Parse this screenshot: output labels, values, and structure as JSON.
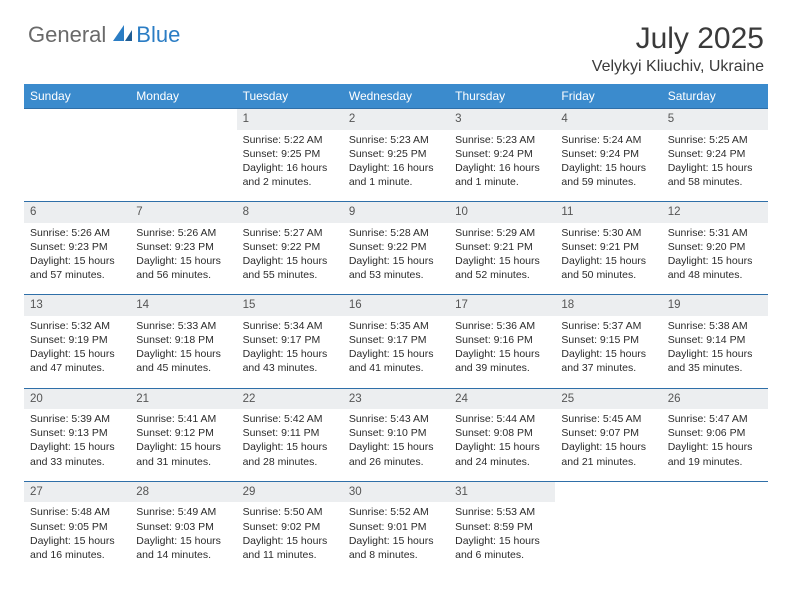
{
  "brand": {
    "name1": "General",
    "name2": "Blue"
  },
  "title": "July 2025",
  "location": "Velykyi Kliuchiv, Ukraine",
  "colors": {
    "header_bg": "#3b8bcd",
    "header_text": "#ffffff",
    "daynum_bg": "#eceef0",
    "row_border": "#2f6fa8",
    "body_text": "#2b2b2b",
    "brand_gray": "#6a6a6a",
    "brand_blue": "#2b7dc4"
  },
  "typography": {
    "title_fontsize": 30,
    "location_fontsize": 16,
    "weekday_fontsize": 12,
    "daynum_fontsize": 11.5,
    "cell_fontsize": 10.5
  },
  "weekdays": [
    "Sunday",
    "Monday",
    "Tuesday",
    "Wednesday",
    "Thursday",
    "Friday",
    "Saturday"
  ],
  "weeks": [
    [
      null,
      null,
      {
        "n": "1",
        "sunrise": "Sunrise: 5:22 AM",
        "sunset": "Sunset: 9:25 PM",
        "day1": "Daylight: 16 hours",
        "day2": "and 2 minutes."
      },
      {
        "n": "2",
        "sunrise": "Sunrise: 5:23 AM",
        "sunset": "Sunset: 9:25 PM",
        "day1": "Daylight: 16 hours",
        "day2": "and 1 minute."
      },
      {
        "n": "3",
        "sunrise": "Sunrise: 5:23 AM",
        "sunset": "Sunset: 9:24 PM",
        "day1": "Daylight: 16 hours",
        "day2": "and 1 minute."
      },
      {
        "n": "4",
        "sunrise": "Sunrise: 5:24 AM",
        "sunset": "Sunset: 9:24 PM",
        "day1": "Daylight: 15 hours",
        "day2": "and 59 minutes."
      },
      {
        "n": "5",
        "sunrise": "Sunrise: 5:25 AM",
        "sunset": "Sunset: 9:24 PM",
        "day1": "Daylight: 15 hours",
        "day2": "and 58 minutes."
      }
    ],
    [
      {
        "n": "6",
        "sunrise": "Sunrise: 5:26 AM",
        "sunset": "Sunset: 9:23 PM",
        "day1": "Daylight: 15 hours",
        "day2": "and 57 minutes."
      },
      {
        "n": "7",
        "sunrise": "Sunrise: 5:26 AM",
        "sunset": "Sunset: 9:23 PM",
        "day1": "Daylight: 15 hours",
        "day2": "and 56 minutes."
      },
      {
        "n": "8",
        "sunrise": "Sunrise: 5:27 AM",
        "sunset": "Sunset: 9:22 PM",
        "day1": "Daylight: 15 hours",
        "day2": "and 55 minutes."
      },
      {
        "n": "9",
        "sunrise": "Sunrise: 5:28 AM",
        "sunset": "Sunset: 9:22 PM",
        "day1": "Daylight: 15 hours",
        "day2": "and 53 minutes."
      },
      {
        "n": "10",
        "sunrise": "Sunrise: 5:29 AM",
        "sunset": "Sunset: 9:21 PM",
        "day1": "Daylight: 15 hours",
        "day2": "and 52 minutes."
      },
      {
        "n": "11",
        "sunrise": "Sunrise: 5:30 AM",
        "sunset": "Sunset: 9:21 PM",
        "day1": "Daylight: 15 hours",
        "day2": "and 50 minutes."
      },
      {
        "n": "12",
        "sunrise": "Sunrise: 5:31 AM",
        "sunset": "Sunset: 9:20 PM",
        "day1": "Daylight: 15 hours",
        "day2": "and 48 minutes."
      }
    ],
    [
      {
        "n": "13",
        "sunrise": "Sunrise: 5:32 AM",
        "sunset": "Sunset: 9:19 PM",
        "day1": "Daylight: 15 hours",
        "day2": "and 47 minutes."
      },
      {
        "n": "14",
        "sunrise": "Sunrise: 5:33 AM",
        "sunset": "Sunset: 9:18 PM",
        "day1": "Daylight: 15 hours",
        "day2": "and 45 minutes."
      },
      {
        "n": "15",
        "sunrise": "Sunrise: 5:34 AM",
        "sunset": "Sunset: 9:17 PM",
        "day1": "Daylight: 15 hours",
        "day2": "and 43 minutes."
      },
      {
        "n": "16",
        "sunrise": "Sunrise: 5:35 AM",
        "sunset": "Sunset: 9:17 PM",
        "day1": "Daylight: 15 hours",
        "day2": "and 41 minutes."
      },
      {
        "n": "17",
        "sunrise": "Sunrise: 5:36 AM",
        "sunset": "Sunset: 9:16 PM",
        "day1": "Daylight: 15 hours",
        "day2": "and 39 minutes."
      },
      {
        "n": "18",
        "sunrise": "Sunrise: 5:37 AM",
        "sunset": "Sunset: 9:15 PM",
        "day1": "Daylight: 15 hours",
        "day2": "and 37 minutes."
      },
      {
        "n": "19",
        "sunrise": "Sunrise: 5:38 AM",
        "sunset": "Sunset: 9:14 PM",
        "day1": "Daylight: 15 hours",
        "day2": "and 35 minutes."
      }
    ],
    [
      {
        "n": "20",
        "sunrise": "Sunrise: 5:39 AM",
        "sunset": "Sunset: 9:13 PM",
        "day1": "Daylight: 15 hours",
        "day2": "and 33 minutes."
      },
      {
        "n": "21",
        "sunrise": "Sunrise: 5:41 AM",
        "sunset": "Sunset: 9:12 PM",
        "day1": "Daylight: 15 hours",
        "day2": "and 31 minutes."
      },
      {
        "n": "22",
        "sunrise": "Sunrise: 5:42 AM",
        "sunset": "Sunset: 9:11 PM",
        "day1": "Daylight: 15 hours",
        "day2": "and 28 minutes."
      },
      {
        "n": "23",
        "sunrise": "Sunrise: 5:43 AM",
        "sunset": "Sunset: 9:10 PM",
        "day1": "Daylight: 15 hours",
        "day2": "and 26 minutes."
      },
      {
        "n": "24",
        "sunrise": "Sunrise: 5:44 AM",
        "sunset": "Sunset: 9:08 PM",
        "day1": "Daylight: 15 hours",
        "day2": "and 24 minutes."
      },
      {
        "n": "25",
        "sunrise": "Sunrise: 5:45 AM",
        "sunset": "Sunset: 9:07 PM",
        "day1": "Daylight: 15 hours",
        "day2": "and 21 minutes."
      },
      {
        "n": "26",
        "sunrise": "Sunrise: 5:47 AM",
        "sunset": "Sunset: 9:06 PM",
        "day1": "Daylight: 15 hours",
        "day2": "and 19 minutes."
      }
    ],
    [
      {
        "n": "27",
        "sunrise": "Sunrise: 5:48 AM",
        "sunset": "Sunset: 9:05 PM",
        "day1": "Daylight: 15 hours",
        "day2": "and 16 minutes."
      },
      {
        "n": "28",
        "sunrise": "Sunrise: 5:49 AM",
        "sunset": "Sunset: 9:03 PM",
        "day1": "Daylight: 15 hours",
        "day2": "and 14 minutes."
      },
      {
        "n": "29",
        "sunrise": "Sunrise: 5:50 AM",
        "sunset": "Sunset: 9:02 PM",
        "day1": "Daylight: 15 hours",
        "day2": "and 11 minutes."
      },
      {
        "n": "30",
        "sunrise": "Sunrise: 5:52 AM",
        "sunset": "Sunset: 9:01 PM",
        "day1": "Daylight: 15 hours",
        "day2": "and 8 minutes."
      },
      {
        "n": "31",
        "sunrise": "Sunrise: 5:53 AM",
        "sunset": "Sunset: 8:59 PM",
        "day1": "Daylight: 15 hours",
        "day2": "and 6 minutes."
      },
      null,
      null
    ]
  ]
}
